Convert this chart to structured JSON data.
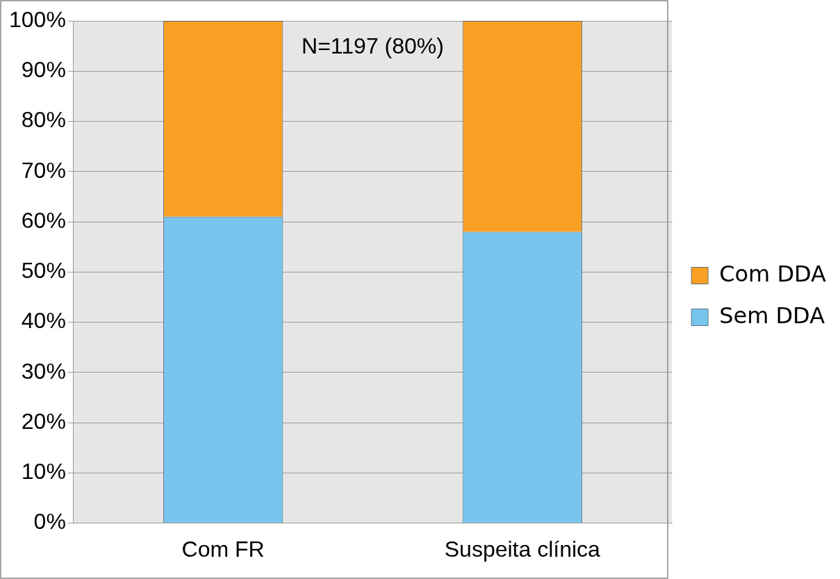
{
  "chart_data": {
    "type": "bar",
    "stacked": true,
    "categories": [
      "Com FR",
      "Suspeita clínica"
    ],
    "series": [
      {
        "name": "Sem DDA",
        "color": "#77c5ec",
        "values": [
          61,
          58
        ]
      },
      {
        "name": "Com DDA",
        "color": "#f8a024",
        "values": [
          39,
          42
        ]
      }
    ],
    "ylim": [
      0,
      100
    ],
    "yticks": [
      {
        "value": 0,
        "label": "0%"
      },
      {
        "value": 10,
        "label": "10%"
      },
      {
        "value": 20,
        "label": "20%"
      },
      {
        "value": 30,
        "label": "30%"
      },
      {
        "value": 40,
        "label": "40%"
      },
      {
        "value": 50,
        "label": "50%"
      },
      {
        "value": 60,
        "label": "60%"
      },
      {
        "value": 70,
        "label": "70%"
      },
      {
        "value": 80,
        "label": "80%"
      },
      {
        "value": 90,
        "label": "90%"
      },
      {
        "value": 100,
        "label": "100%"
      }
    ],
    "grid": "y",
    "legend": "right",
    "annotations": [
      "N=1197 (80%)"
    ]
  }
}
